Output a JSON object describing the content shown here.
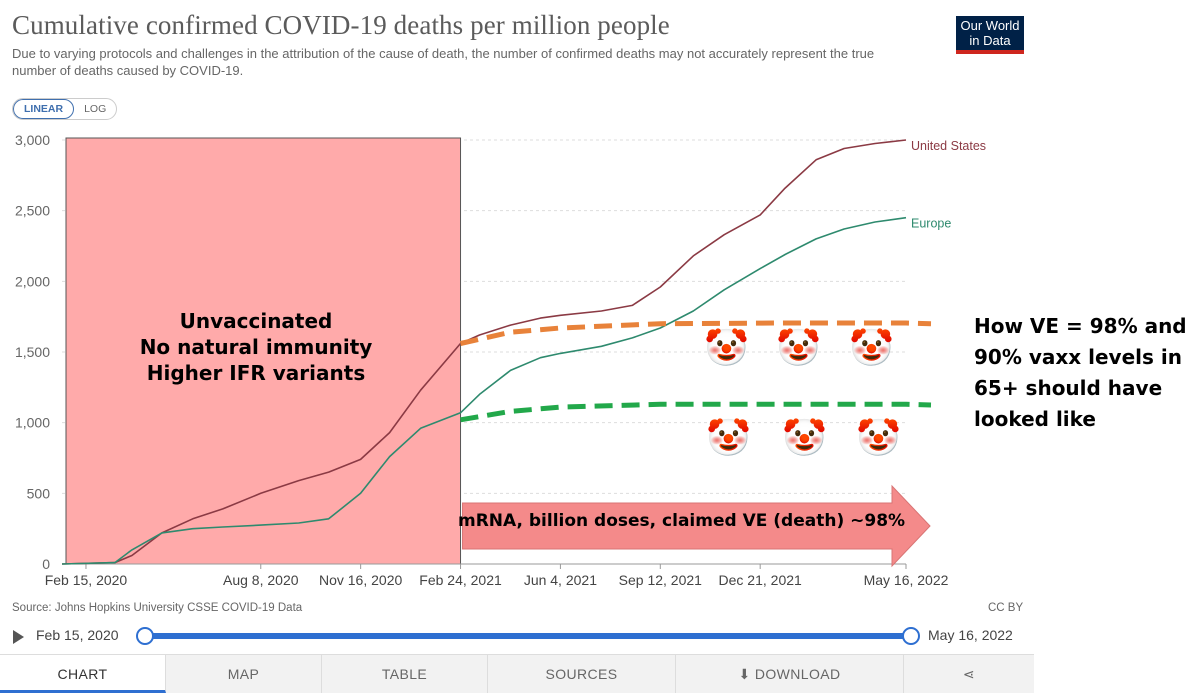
{
  "header": {
    "title": "Cumulative confirmed COVID-19 deaths per million people",
    "subtitle": "Due to varying protocols and challenges in the attribution of the cause of death, the number of confirmed deaths may not accurately represent the true number of deaths caused by COVID-19.",
    "logo_line1": "Our World",
    "logo_line2": "in Data"
  },
  "scale_toggle": {
    "linear": "LINEAR",
    "log": "LOG",
    "selected": "LINEAR"
  },
  "chart_data": {
    "type": "line",
    "title": "Cumulative confirmed COVID-19 deaths per million people",
    "xlabel": "",
    "ylabel": "",
    "ylim": [
      0,
      3000
    ],
    "xlim": [
      "2020-01-22",
      "2022-05-16"
    ],
    "yticks": [
      0,
      500,
      1000,
      1500,
      2000,
      2500,
      3000
    ],
    "ytick_labels": [
      "0",
      "500",
      "1,000",
      "1,500",
      "2,000",
      "2,500",
      "3,000"
    ],
    "xticks": [
      "2020-02-15",
      "2020-08-08",
      "2020-11-16",
      "2021-02-24",
      "2021-06-04",
      "2021-09-12",
      "2021-12-21",
      "2022-05-16"
    ],
    "xtick_labels": [
      "Feb 15, 2020",
      "Aug 8, 2020",
      "Nov 16, 2020",
      "Feb 24, 2021",
      "Jun 4, 2021",
      "Sep 12, 2021",
      "Dec 21, 2021",
      "May 16, 2022"
    ],
    "grid": true,
    "series": [
      {
        "name": "United States",
        "color": "#8b3a44",
        "x": [
          "2020-01-22",
          "2020-03-15",
          "2020-04-01",
          "2020-05-01",
          "2020-06-01",
          "2020-07-01",
          "2020-08-08",
          "2020-09-15",
          "2020-10-15",
          "2020-11-16",
          "2020-12-15",
          "2021-01-15",
          "2021-02-24",
          "2021-03-15",
          "2021-04-15",
          "2021-05-15",
          "2021-06-04",
          "2021-07-15",
          "2021-08-15",
          "2021-09-12",
          "2021-10-15",
          "2021-11-15",
          "2021-12-21",
          "2022-01-15",
          "2022-02-15",
          "2022-03-15",
          "2022-04-15",
          "2022-05-16"
        ],
        "y": [
          0,
          10,
          60,
          220,
          320,
          390,
          500,
          590,
          650,
          740,
          930,
          1230,
          1560,
          1620,
          1690,
          1740,
          1760,
          1790,
          1830,
          1960,
          2180,
          2330,
          2470,
          2660,
          2860,
          2940,
          2975,
          3000
        ]
      },
      {
        "name": "Europe",
        "color": "#2e8a6e",
        "x": [
          "2020-01-22",
          "2020-03-15",
          "2020-04-01",
          "2020-05-01",
          "2020-06-01",
          "2020-07-01",
          "2020-08-08",
          "2020-09-15",
          "2020-10-15",
          "2020-11-16",
          "2020-12-15",
          "2021-01-15",
          "2021-02-24",
          "2021-03-15",
          "2021-04-15",
          "2021-05-15",
          "2021-06-04",
          "2021-07-15",
          "2021-08-15",
          "2021-09-12",
          "2021-10-15",
          "2021-11-15",
          "2021-12-21",
          "2022-01-15",
          "2022-02-15",
          "2022-03-15",
          "2022-04-15",
          "2022-05-16"
        ],
        "y": [
          0,
          10,
          100,
          220,
          250,
          262,
          275,
          290,
          320,
          500,
          760,
          960,
          1070,
          1200,
          1370,
          1460,
          1490,
          1540,
          1600,
          1670,
          1790,
          1940,
          2090,
          2190,
          2300,
          2370,
          2420,
          2450
        ]
      }
    ],
    "overlays": [
      {
        "kind": "projection",
        "color": "#e8823a",
        "x": [
          "2021-02-24",
          "2021-04-15",
          "2021-06-04",
          "2021-09-12",
          "2022-01-15",
          "2022-05-16",
          "2022-06-10"
        ],
        "y": [
          1560,
          1640,
          1670,
          1700,
          1705,
          1705,
          1700
        ]
      },
      {
        "kind": "projection",
        "color": "#22a84a",
        "x": [
          "2021-02-24",
          "2021-04-15",
          "2021-06-04",
          "2021-09-12",
          "2022-01-15",
          "2022-05-16",
          "2022-06-10"
        ],
        "y": [
          1020,
          1080,
          1110,
          1130,
          1130,
          1130,
          1125
        ]
      }
    ],
    "shaded_region": {
      "x": [
        "2020-01-22",
        "2021-02-24"
      ],
      "color": "#ffaaaa"
    }
  },
  "annotations": {
    "shaded_text": [
      "Unvaccinated",
      "No natural immunity",
      "Higher IFR variants"
    ],
    "arrow_text": "mRNA, billion doses, claimed VE (death) ~98%",
    "side_text": [
      "How VE = 98% and",
      "90% vaxx levels in",
      "65+  should have",
      "looked like"
    ],
    "clown_glyph": "🤡",
    "icon": "clown-face-icon"
  },
  "footer": {
    "source": "Source: Johns Hopkins University CSSE COVID-19 Data",
    "license": "CC BY"
  },
  "timeline": {
    "start": "Feb 15, 2020",
    "end": "May 16, 2022"
  },
  "tabs": [
    {
      "label": "CHART",
      "active": true
    },
    {
      "label": "MAP"
    },
    {
      "label": "TABLE"
    },
    {
      "label": "SOURCES"
    },
    {
      "label": "⬇ DOWNLOAD"
    },
    {
      "label": "⋖"
    }
  ]
}
